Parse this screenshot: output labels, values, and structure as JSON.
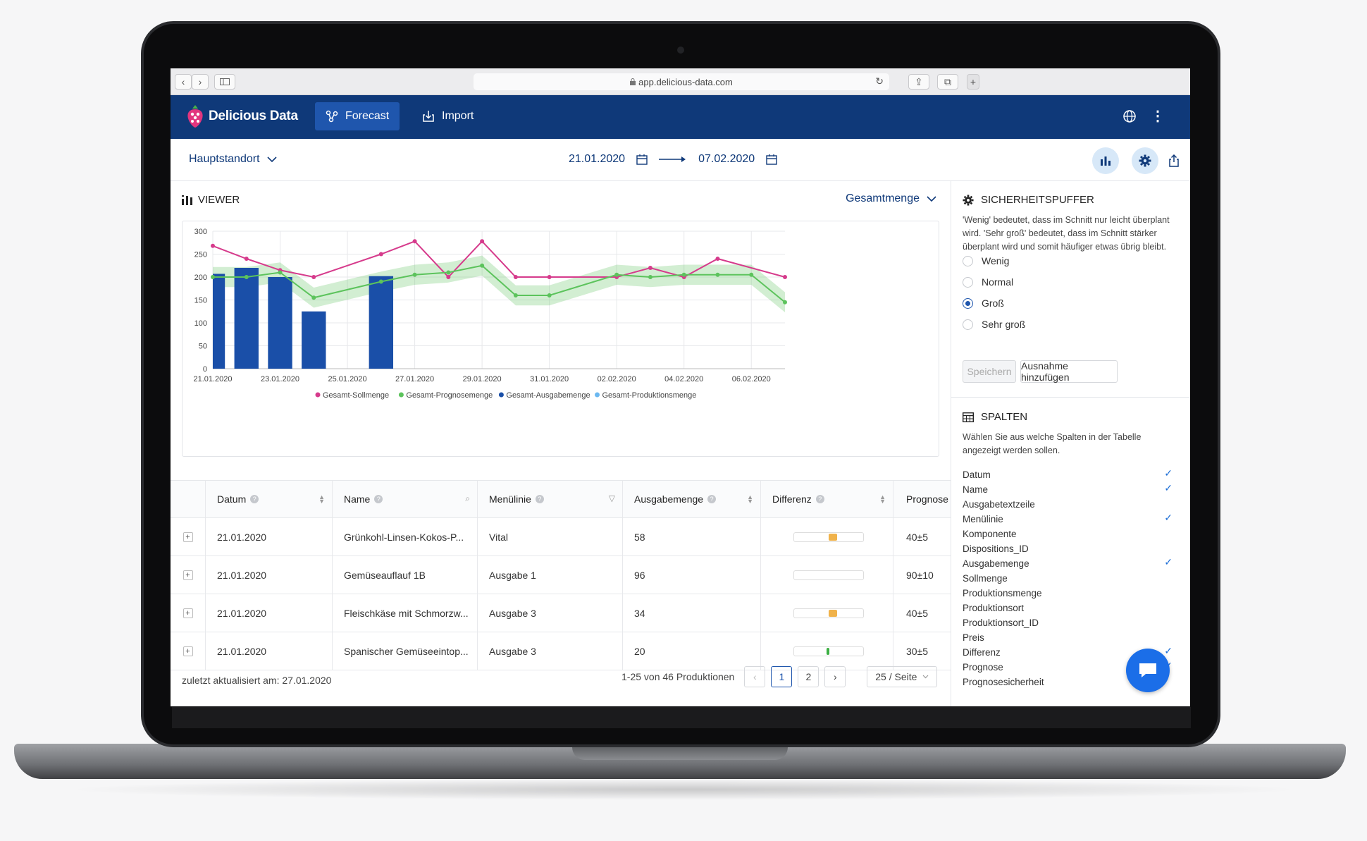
{
  "browser": {
    "url": "app.delicious-data.com"
  },
  "app": {
    "brand": "Delicious Data",
    "nav": [
      {
        "label": "Forecast"
      },
      {
        "label": "Import"
      }
    ]
  },
  "toolbar": {
    "location": "Hauptstandort",
    "date_from": "21.01.2020",
    "date_to": "07.02.2020"
  },
  "viewer": {
    "title": "VIEWER",
    "select": "Gesamtmenge"
  },
  "chart_data": {
    "type": "bar",
    "x": [
      "21.01.2020",
      "22.01.2020",
      "23.01.2020",
      "24.01.2020",
      "25.01.2020",
      "26.01.2020",
      "27.01.2020",
      "28.01.2020",
      "29.01.2020",
      "30.01.2020",
      "31.01.2020",
      "01.02.2020",
      "02.02.2020",
      "03.02.2020",
      "04.02.2020",
      "05.02.2020",
      "06.02.2020",
      "07.02.2020"
    ],
    "tick_labels": [
      "21.01.2020",
      "23.01.2020",
      "25.01.2020",
      "27.01.2020",
      "29.01.2020",
      "31.01.2020",
      "02.02.2020",
      "04.02.2020",
      "06.02.2020"
    ],
    "y_ticks": [
      0,
      50,
      100,
      150,
      200,
      250,
      300
    ],
    "ylim": [
      0,
      300
    ],
    "series": [
      {
        "name": "Gesamt-Sollmenge",
        "kind": "line",
        "color": "#d63b8c",
        "points": [
          [
            "21.01.2020",
            268
          ],
          [
            "22.01.2020",
            240
          ],
          [
            "23.01.2020",
            215
          ],
          [
            "24.01.2020",
            200
          ],
          [
            "26.01.2020",
            250
          ],
          [
            "27.01.2020",
            278
          ],
          [
            "28.01.2020",
            200
          ],
          [
            "29.01.2020",
            278
          ],
          [
            "30.01.2020",
            200
          ],
          [
            "31.01.2020",
            200
          ],
          [
            "02.02.2020",
            200
          ],
          [
            "03.02.2020",
            220
          ],
          [
            "04.02.2020",
            200
          ],
          [
            "05.02.2020",
            240
          ],
          [
            "07.02.2020",
            200
          ]
        ]
      },
      {
        "name": "Gesamt-Prognosemenge",
        "kind": "line",
        "color": "#5cc35c",
        "band": 22,
        "points": [
          [
            "21.01.2020",
            200
          ],
          [
            "22.01.2020",
            200
          ],
          [
            "23.01.2020",
            210
          ],
          [
            "24.01.2020",
            155
          ],
          [
            "26.01.2020",
            190
          ],
          [
            "27.01.2020",
            205
          ],
          [
            "28.01.2020",
            210
          ],
          [
            "29.01.2020",
            225
          ],
          [
            "30.01.2020",
            160
          ],
          [
            "31.01.2020",
            160
          ],
          [
            "02.02.2020",
            205
          ],
          [
            "03.02.2020",
            200
          ],
          [
            "04.02.2020",
            205
          ],
          [
            "05.02.2020",
            205
          ],
          [
            "06.02.2020",
            205
          ],
          [
            "07.02.2020",
            145
          ]
        ]
      },
      {
        "name": "Gesamt-Ausgabemenge",
        "kind": "bar",
        "color": "#1a4fa8",
        "points": [
          [
            "21.01.2020",
            207
          ],
          [
            "22.01.2020",
            220
          ],
          [
            "23.01.2020",
            200
          ],
          [
            "24.01.2020",
            125
          ],
          [
            "26.01.2020",
            202
          ]
        ]
      },
      {
        "name": "Gesamt-Produktionsmenge",
        "kind": "bar",
        "color": "#6bb8f0",
        "points": []
      }
    ]
  },
  "table": {
    "headers": [
      "Datum",
      "Name",
      "Menülinie",
      "Ausgabemenge",
      "Differenz",
      "Prognose"
    ],
    "rows": [
      {
        "date": "21.01.2020",
        "name": "Grünkohl-Linsen-Kokos-P...",
        "line": "Vital",
        "qty": "58",
        "diff_color": "#f0b24a",
        "diff_pos": 0.55,
        "prognose": "40±5"
      },
      {
        "date": "21.01.2020",
        "name": "Gemüseauflauf 1B",
        "line": "Ausgabe 1",
        "qty": "96",
        "diff_color": "",
        "diff_pos": 0,
        "prognose": "90±10"
      },
      {
        "date": "21.01.2020",
        "name": "Fleischkäse mit Schmorzw...",
        "line": "Ausgabe 3",
        "qty": "34",
        "diff_color": "#f0b24a",
        "diff_pos": 0.55,
        "prognose": "40±5"
      },
      {
        "date": "21.01.2020",
        "name": "Spanischer Gemüseeintop...",
        "line": "Ausgabe 3",
        "qty": "20",
        "diff_color": "#3cb043",
        "diff_pos": 0.52,
        "prognose": "30±5"
      }
    ],
    "updated": "zuletzt aktualisiert am: 27.01.2020",
    "range_text": "1-25 von 46 Produktionen",
    "pages": [
      "1",
      "2"
    ],
    "page_size": "25 / Seite"
  },
  "buffer": {
    "title": "SICHERHEITSPUFFER",
    "desc": "'Wenig' bedeutet, dass im Schnitt nur leicht überplant wird. 'Sehr groß' bedeutet, dass im Schnitt stärker überplant wird und somit häufiger etwas übrig bleibt.",
    "options": [
      {
        "label": "Wenig",
        "selected": false
      },
      {
        "label": "Normal",
        "selected": false
      },
      {
        "label": "Groß",
        "selected": true
      },
      {
        "label": "Sehr groß",
        "selected": false
      }
    ],
    "save": "Speichern",
    "add": "Ausnahme hinzufügen"
  },
  "columns": {
    "title": "SPALTEN",
    "desc": "Wählen Sie aus welche Spalten in der Tabelle angezeigt werden sollen.",
    "items": [
      {
        "label": "Datum",
        "checked": true
      },
      {
        "label": "Name",
        "checked": true
      },
      {
        "label": "Ausgabetextzeile",
        "checked": false
      },
      {
        "label": "Menülinie",
        "checked": true
      },
      {
        "label": "Komponente",
        "checked": false
      },
      {
        "label": "Dispositions_ID",
        "checked": false
      },
      {
        "label": "Ausgabemenge",
        "checked": true
      },
      {
        "label": "Sollmenge",
        "checked": false
      },
      {
        "label": "Produktionsmenge",
        "checked": false
      },
      {
        "label": "Produktionsort",
        "checked": false
      },
      {
        "label": "Produktionsort_ID",
        "checked": false
      },
      {
        "label": "Preis",
        "checked": false
      },
      {
        "label": "Differenz",
        "checked": true
      },
      {
        "label": "Prognose",
        "checked": true
      },
      {
        "label": "Prognosesicherheit",
        "checked": false
      }
    ]
  }
}
